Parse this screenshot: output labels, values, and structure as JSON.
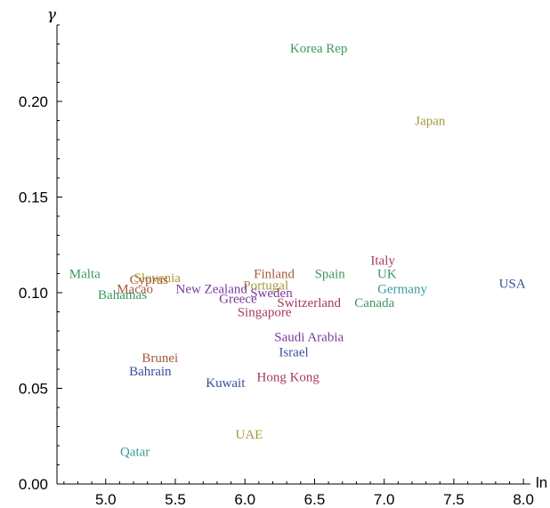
{
  "chart_data": {
    "type": "scatter",
    "xlabel": "ln μ̂",
    "ylabel": "γ",
    "xlim": [
      4.65,
      8.05
    ],
    "ylim": [
      0,
      0.24
    ],
    "x_ticks": [
      5.0,
      5.5,
      6.0,
      6.5,
      7.0,
      7.5,
      8.0
    ],
    "x_tick_labels": [
      "5.0",
      "5.5",
      "6.0",
      "6.5",
      "7.0",
      "7.5",
      "8.0"
    ],
    "y_ticks": [
      0.0,
      0.05,
      0.1,
      0.15,
      0.2
    ],
    "y_tick_labels": [
      "0.00",
      "0.05",
      "0.10",
      "0.15",
      "0.20"
    ],
    "grid": false,
    "points": [
      {
        "label": "Korea Rep",
        "x": 6.53,
        "y": 0.228,
        "color": "#3a9a5e"
      },
      {
        "label": "Japan",
        "x": 7.33,
        "y": 0.19,
        "color": "#a49a3a"
      },
      {
        "label": "Italy",
        "x": 6.99,
        "y": 0.117,
        "color": "#a83a5a"
      },
      {
        "label": "USA",
        "x": 7.92,
        "y": 0.105,
        "color": "#3a4e9a"
      },
      {
        "label": "UK",
        "x": 7.02,
        "y": 0.11,
        "color": "#3a9a5e"
      },
      {
        "label": "Germany",
        "x": 7.13,
        "y": 0.102,
        "color": "#3a9a9a"
      },
      {
        "label": "Canada",
        "x": 6.93,
        "y": 0.095,
        "color": "#3a9a5e"
      },
      {
        "label": "Spain",
        "x": 6.61,
        "y": 0.11,
        "color": "#3a9a5e"
      },
      {
        "label": "Switzerland",
        "x": 6.46,
        "y": 0.095,
        "color": "#a83a5a"
      },
      {
        "label": "Finland",
        "x": 6.21,
        "y": 0.11,
        "color": "#a8583a"
      },
      {
        "label": "Portugal",
        "x": 6.15,
        "y": 0.104,
        "color": "#a49a3a"
      },
      {
        "label": "Sweden",
        "x": 6.19,
        "y": 0.1,
        "color": "#7a3a9a"
      },
      {
        "label": "Greece",
        "x": 5.95,
        "y": 0.097,
        "color": "#7a3a9a"
      },
      {
        "label": "Singapore",
        "x": 6.14,
        "y": 0.09,
        "color": "#a83a5a"
      },
      {
        "label": "New Zealand",
        "x": 5.76,
        "y": 0.102,
        "color": "#7a3a9a"
      },
      {
        "label": "Slovenia",
        "x": 5.37,
        "y": 0.108,
        "color": "#a49a3a"
      },
      {
        "label": "Cyprus",
        "x": 5.31,
        "y": 0.107,
        "color": "#a8583a"
      },
      {
        "label": "Macao",
        "x": 5.21,
        "y": 0.102,
        "color": "#a8583a"
      },
      {
        "label": "Malta",
        "x": 4.85,
        "y": 0.11,
        "color": "#3a9a5e"
      },
      {
        "label": "Bahamas",
        "x": 5.12,
        "y": 0.099,
        "color": "#3a9a5e"
      },
      {
        "label": "Saudi Arabia",
        "x": 6.46,
        "y": 0.077,
        "color": "#7a3a9a"
      },
      {
        "label": "Israel",
        "x": 6.35,
        "y": 0.069,
        "color": "#3a4e9a"
      },
      {
        "label": "Hong Kong",
        "x": 6.31,
        "y": 0.056,
        "color": "#a83a5a"
      },
      {
        "label": "Brunei",
        "x": 5.39,
        "y": 0.066,
        "color": "#a8583a"
      },
      {
        "label": "Bahrain",
        "x": 5.32,
        "y": 0.059,
        "color": "#3a4e9a"
      },
      {
        "label": "Kuwait",
        "x": 5.86,
        "y": 0.053,
        "color": "#3a4e9a"
      },
      {
        "label": "UAE",
        "x": 6.03,
        "y": 0.026,
        "color": "#a49a3a"
      },
      {
        "label": "Qatar",
        "x": 5.21,
        "y": 0.017,
        "color": "#3a9a9a"
      }
    ]
  }
}
